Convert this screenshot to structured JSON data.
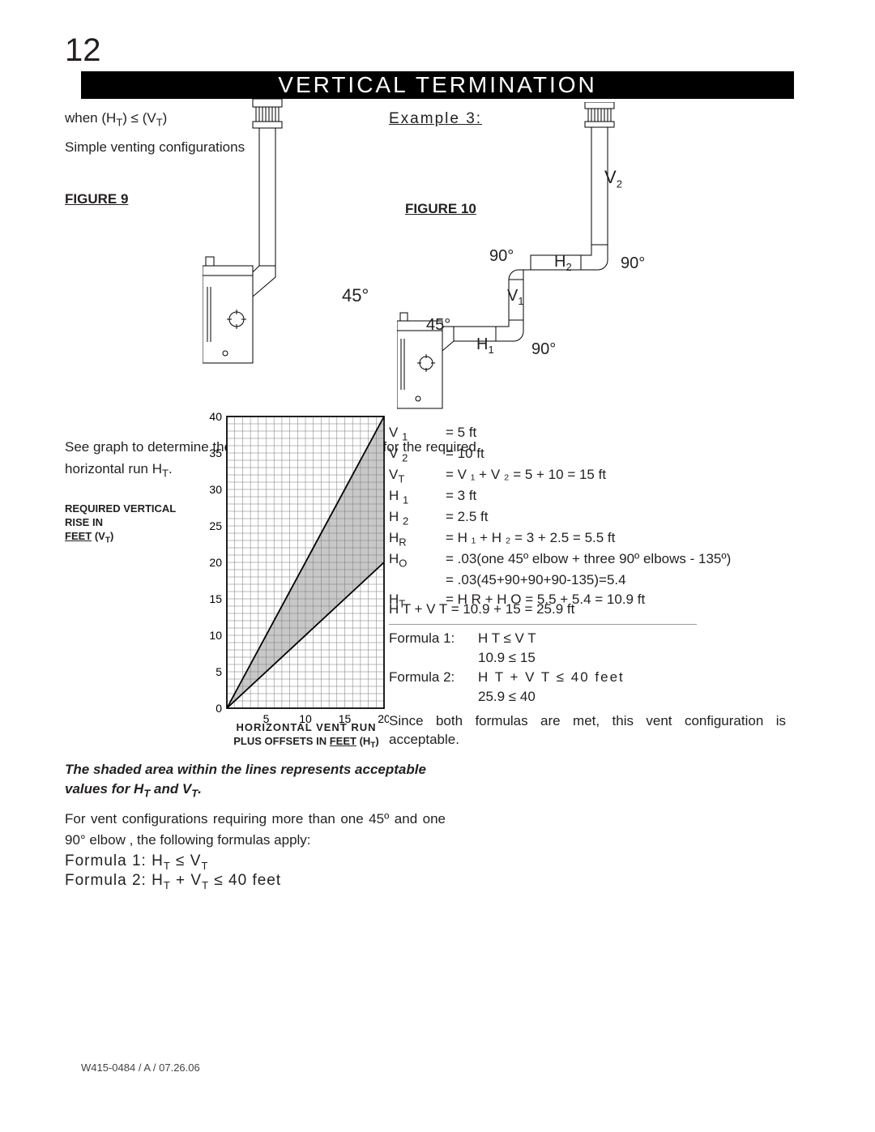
{
  "page_number": "12",
  "title": "VERTICAL TERMINATION",
  "left": {
    "condition": "when (H",
    "condition_sub1": "T",
    "condition_mid": ") ≤ (V",
    "condition_sub2": "T",
    "condition_end": ")",
    "simple": "Simple venting configurations",
    "figure9": "FIGURE 9",
    "angle45": "45°",
    "graph_note": "See graph to determine the required vertical rise V",
    "graph_note_sub": "T",
    "graph_note_2": " for the required horizontal run H",
    "graph_note_sub2": "T",
    "graph_note_end": ".",
    "y_label_1": "REQUIRED VERTICAL RISE IN",
    "y_label_2": "FEET",
    "y_label_3": " (V",
    "y_label_sub": "T",
    "y_label_4": ")",
    "x_label_1": "HORIZONTAL VENT RUN",
    "x_label_2": "PLUS OFFSETS IN ",
    "x_label_3": "FEET",
    "x_label_4": " (H",
    "x_label_sub": "T",
    "x_label_5": ")",
    "shaded_note": "The shaded area within the lines represents acceptable values for H",
    "shaded_sub1": "T",
    "shaded_mid": " and V",
    "shaded_sub2": "T",
    "shaded_end": ".",
    "config_note": "For vent configurations requiring more than one 45º and one 90° elbow , the following formulas apply:",
    "formula1": "Formula 1: H",
    "formula1_sub": "T",
    "formula1_mid": " ≤ V",
    "formula1_sub2": "T",
    "formula2": "Formula 2: H",
    "formula2_sub": "T",
    "formula2_mid": " + V",
    "formula2_sub2": "T",
    "formula2_end": " ≤ 40 feet"
  },
  "right": {
    "example": "Example 3:",
    "figure10": "FIGURE 10",
    "deg90a": "90°",
    "deg90b": "90°",
    "deg90c": "90°",
    "deg45": "45°",
    "h1": "H",
    "h1sub": "1",
    "h2": "H",
    "h2sub": "2",
    "v1": "V",
    "v1sub": "1",
    "v2": "V",
    "v2sub": "2",
    "eq": [
      {
        "lab": "V ",
        "sub": "1",
        "val": "= 5 ft"
      },
      {
        "lab": "V ",
        "sub": "2",
        "val": "= 10 ft"
      },
      {
        "lab": "V",
        "sub": "T",
        "val": "= V ₁ + V ₂ = 5 + 10 = 15 ft"
      },
      {
        "lab": "H ",
        "sub": "1",
        "val": "= 3 ft"
      },
      {
        "lab": "H ",
        "sub": "2",
        "val": "= 2.5 ft"
      },
      {
        "lab": "H",
        "sub": "R",
        "val": "= H ₁ + H ₂ = 3 + 2.5 = 5.5 ft"
      },
      {
        "lab": "H",
        "sub": "O",
        "val": "= .03(one 45º elbow + three 90º elbows - 135º)"
      },
      {
        "lab": "",
        "sub": "",
        "val": "= .03(45+90+90+90-135)=5.4"
      },
      {
        "lab": "H",
        "sub": "T",
        "val": "= H R + H O = 5.5 + 5.4 = 10.9 ft"
      }
    ],
    "sum": "H T  +  V T  = 10.9 + 15 = 25.9 ft",
    "f1a": "Formula 1:",
    "f1b": "H T  ≤ V T",
    "f1c": "10.9 ≤ 15",
    "f2a": "Formula 2:",
    "f2b": "H T + V T ≤ 40 feet",
    "f2c": "25.9 ≤ 40",
    "conclusion": "Since both formulas are met, this vent configuration is acceptable."
  },
  "chart": {
    "y_ticks": [
      "0",
      "5",
      "10",
      "15",
      "20",
      "25",
      "30",
      "35",
      "40"
    ],
    "x_ticks": [
      "5",
      "10",
      "15",
      "20"
    ],
    "grid_color": "#777777",
    "shade_color": "#c8c8c8",
    "bg": "#ffffff"
  },
  "footer": "W415-0484 / A / 07.26.06"
}
